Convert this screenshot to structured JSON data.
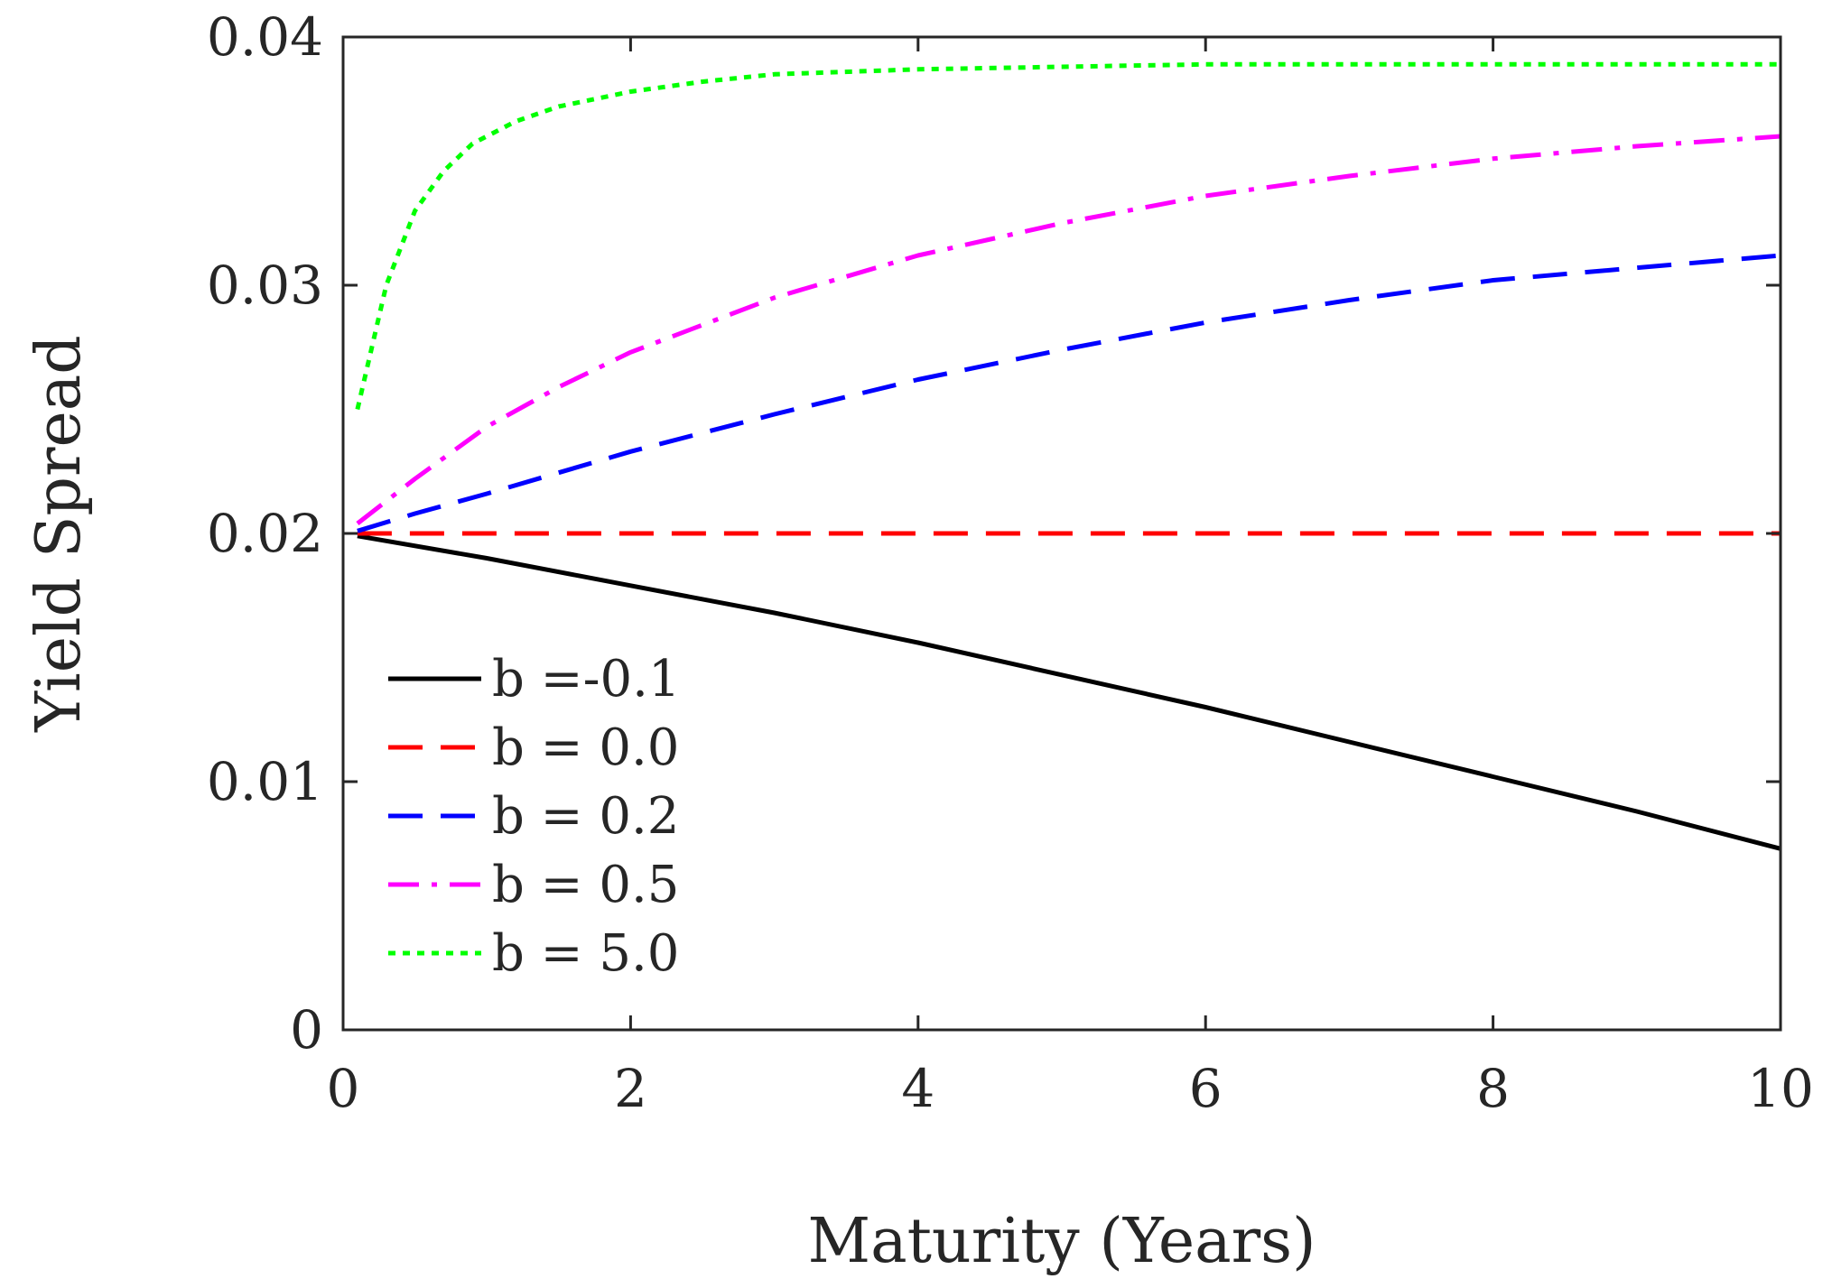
{
  "chart_data": {
    "type": "line",
    "title": "",
    "xlabel": "Maturity (Years)",
    "ylabel": "Yield Spread",
    "xlim": [
      0,
      10
    ],
    "ylim": [
      0,
      0.04
    ],
    "grid": false,
    "legend_position": "bottom-left",
    "x_ticks": [
      0,
      2,
      4,
      6,
      8,
      10
    ],
    "x_tick_labels": [
      "0",
      "2",
      "4",
      "6",
      "8",
      "10"
    ],
    "y_ticks": [
      0,
      0.01,
      0.02,
      0.03,
      0.04
    ],
    "y_tick_labels": [
      "0",
      "0.01",
      "0.02",
      "0.03",
      "0.04"
    ],
    "series": [
      {
        "name": "b =-0.1",
        "color": "#000000",
        "style": "solid",
        "x": [
          0.1,
          1,
          2,
          3,
          4,
          5,
          6,
          7,
          8,
          9,
          10
        ],
        "y": [
          0.0199,
          0.019,
          0.0179,
          0.0168,
          0.0156,
          0.0143,
          0.013,
          0.0116,
          0.0102,
          0.0088,
          0.0073
        ]
      },
      {
        "name": "b = 0.0",
        "color": "#ff0000",
        "style": "dashed",
        "x": [
          0.1,
          10
        ],
        "y": [
          0.02,
          0.02
        ]
      },
      {
        "name": "b = 0.2",
        "color": "#0000ff",
        "style": "dashed",
        "x": [
          0.1,
          0.5,
          1,
          2,
          3,
          4,
          5,
          6,
          7,
          8,
          9,
          10
        ],
        "y": [
          0.0201,
          0.0208,
          0.0216,
          0.0233,
          0.0248,
          0.0262,
          0.0274,
          0.0285,
          0.0294,
          0.0302,
          0.0307,
          0.0312
        ]
      },
      {
        "name": "b = 0.5",
        "color": "#ff00ff",
        "style": "dashdot",
        "x": [
          0.1,
          0.5,
          1,
          1.5,
          2,
          3,
          4,
          5,
          6,
          7,
          8,
          9,
          10
        ],
        "y": [
          0.0204,
          0.0222,
          0.0243,
          0.0259,
          0.0273,
          0.0295,
          0.0312,
          0.0325,
          0.0336,
          0.0344,
          0.0351,
          0.0356,
          0.036
        ]
      },
      {
        "name": "b = 5.0",
        "color": "#00ff00",
        "style": "dotted",
        "x": [
          0.1,
          0.3,
          0.5,
          0.7,
          0.9,
          1.2,
          1.5,
          2,
          2.5,
          3,
          4,
          5,
          6,
          7,
          8,
          9,
          10
        ],
        "y": [
          0.025,
          0.03,
          0.033,
          0.0346,
          0.0357,
          0.0366,
          0.0372,
          0.0378,
          0.0382,
          0.0385,
          0.0387,
          0.0388,
          0.0389,
          0.0389,
          0.0389,
          0.0389,
          0.0389
        ]
      }
    ]
  }
}
